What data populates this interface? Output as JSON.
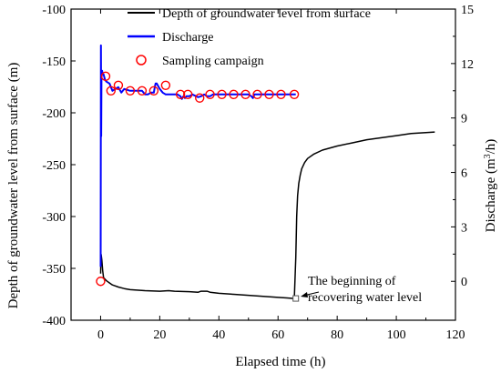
{
  "chart_data": {
    "type": "line",
    "xlabel": "Elapsed time (h)",
    "ylabel_left": "Depth of groundwater level from surface (m)",
    "ylabel_right_prefix": "Discharge (m",
    "ylabel_right_sup": "3",
    "ylabel_right_suffix": "/h)",
    "xlim": [
      -10,
      120
    ],
    "ylim_left": [
      -400,
      -100
    ],
    "ylim_right": [
      -2.143,
      15
    ],
    "x_ticks": [
      0,
      20,
      40,
      60,
      80,
      100,
      120
    ],
    "y_left_ticks": [
      -100,
      -150,
      -200,
      -250,
      -300,
      -350,
      -400
    ],
    "y_right_ticks": [
      0,
      3,
      6,
      9,
      12,
      15
    ],
    "x_tick_labels": [
      "0",
      "20",
      "40",
      "60",
      "80",
      "100",
      "120"
    ],
    "y_left_tick_labels": [
      "-100",
      "-150",
      "-200",
      "-250",
      "-300",
      "-350",
      "-400"
    ],
    "y_right_tick_labels": [
      "0",
      "3",
      "6",
      "9",
      "12",
      "15"
    ],
    "colors": {
      "depth": "#000000",
      "discharge": "#0000ff",
      "sampling": "#ff0000",
      "axis": "#000000"
    },
    "legend": [
      {
        "label": "Depth of groundwater level from surface",
        "marker": "line",
        "color": "#000000"
      },
      {
        "label": "Discharge",
        "marker": "line",
        "color": "#0000ff"
      },
      {
        "label": "Sampling campaign",
        "marker": "circle",
        "color": "#ff0000"
      }
    ],
    "legend_placement": "top-left",
    "grid": false,
    "series": [
      {
        "name": "Depth of groundwater level from surface",
        "axis": "left",
        "x": [
          0,
          0.1,
          0.2,
          0.4,
          0.7,
          1,
          2,
          3,
          4,
          6,
          8,
          10,
          15,
          20,
          23,
          25,
          30,
          33,
          34,
          36,
          37,
          40,
          45,
          50,
          55,
          60,
          63,
          65.5,
          66,
          66.3,
          66.6,
          67,
          67.5,
          68,
          69,
          70,
          72,
          75,
          80,
          85,
          90,
          95,
          100,
          105,
          110,
          113
        ],
        "y": [
          -355,
          -336,
          -337,
          -342,
          -352,
          -359,
          -362,
          -364,
          -366,
          -368,
          -369.5,
          -370.5,
          -371.5,
          -372,
          -371.5,
          -372,
          -372.5,
          -373,
          -372,
          -372,
          -373,
          -374,
          -375,
          -376,
          -377,
          -378,
          -378.5,
          -379,
          -340,
          -300,
          -280,
          -268,
          -260,
          -254,
          -248,
          -244,
          -240,
          -236,
          -232,
          -229,
          -226,
          -224,
          -222,
          -220,
          -219,
          -218.5
        ]
      },
      {
        "name": "Discharge",
        "axis": "right",
        "x": [
          0,
          0.1,
          0.2,
          0.3,
          0.5,
          0.7,
          1,
          1.5,
          2,
          3,
          3.5,
          4,
          5,
          6,
          7,
          8,
          10,
          12,
          14,
          15,
          16,
          17,
          18,
          18.3,
          18.6,
          19,
          20,
          21,
          22,
          23,
          24,
          25,
          26,
          27,
          27.5,
          28,
          28.5,
          29,
          30,
          31,
          33,
          34,
          35,
          36,
          37,
          38,
          40,
          45,
          50,
          51,
          51.5,
          52,
          55,
          60,
          66
        ],
        "y": [
          0.8,
          13,
          8,
          11.2,
          11.6,
          11.4,
          11.4,
          11.1,
          11,
          10.9,
          10.7,
          10.5,
          10.6,
          10.7,
          10.4,
          10.6,
          10.5,
          10.5,
          10.5,
          10.3,
          10.3,
          10.4,
          10.4,
          10.7,
          10.9,
          10.9,
          10.6,
          10.4,
          10.3,
          10.3,
          10.3,
          10.3,
          10.3,
          10.2,
          10.05,
          10.2,
          10.1,
          10.2,
          10.2,
          10.3,
          10.15,
          10.2,
          10.3,
          10.2,
          10.2,
          10.3,
          10.3,
          10.3,
          10.3,
          10.2,
          10.1,
          10.3,
          10.3,
          10.3,
          10.3
        ]
      },
      {
        "name": "Sampling campaign",
        "axis": "right",
        "x": [
          0,
          1.7,
          3.5,
          6,
          10,
          14,
          18,
          22,
          27,
          29.5,
          33.5,
          37,
          41,
          45,
          49,
          53,
          57,
          61,
          65.5
        ],
        "y": [
          0,
          11.3,
          10.5,
          10.8,
          10.5,
          10.5,
          10.5,
          10.8,
          10.3,
          10.3,
          10.1,
          10.3,
          10.3,
          10.3,
          10.3,
          10.3,
          10.3,
          10.3,
          10.3
        ]
      }
    ],
    "annotation": {
      "line1": "The beginning of",
      "line2": "recovering water level",
      "point_x": 66,
      "point_y": -379
    }
  }
}
